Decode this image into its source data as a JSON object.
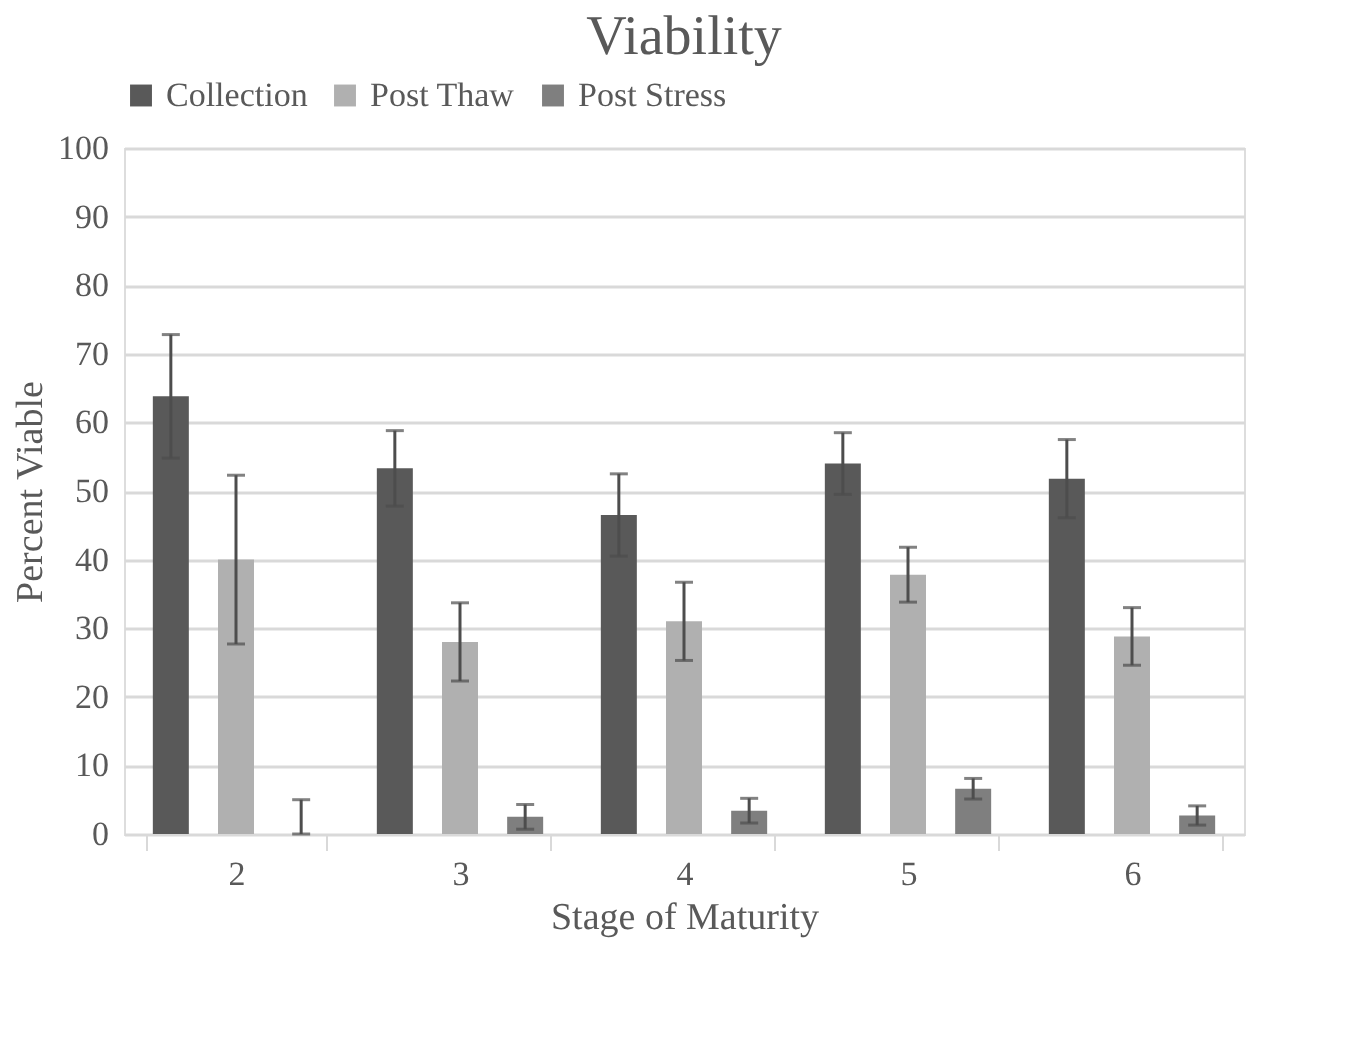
{
  "chart_data": {
    "type": "bar",
    "title": "Viability",
    "xlabel": "Stage of Maturity",
    "ylabel": "Percent Viable",
    "categories": [
      "2",
      "3",
      "4",
      "5",
      "6"
    ],
    "series": [
      {
        "name": "Collection",
        "color": "#595959",
        "values": [
          63.8,
          53.3,
          46.5,
          54,
          51.8
        ],
        "errors": [
          9,
          5.5,
          6,
          4.5,
          5.7
        ]
      },
      {
        "name": "Post Thaw",
        "color": "#b0b0b0",
        "values": [
          40,
          28,
          31,
          37.8,
          28.8
        ],
        "errors": [
          12.3,
          5.7,
          5.7,
          4,
          4.2
        ]
      },
      {
        "name": "Post Stress",
        "color": "#7f7f7f",
        "values": [
          0,
          2.5,
          3.4,
          6.6,
          2.7
        ],
        "errors": [
          [
            0,
            5
          ],
          1.8,
          1.8,
          1.5,
          1.4
        ]
      }
    ],
    "ylim": [
      0,
      100
    ],
    "yticks": [
      0,
      10,
      20,
      30,
      40,
      50,
      60,
      70,
      80,
      90,
      100
    ],
    "grid": "y",
    "legend": "top"
  }
}
